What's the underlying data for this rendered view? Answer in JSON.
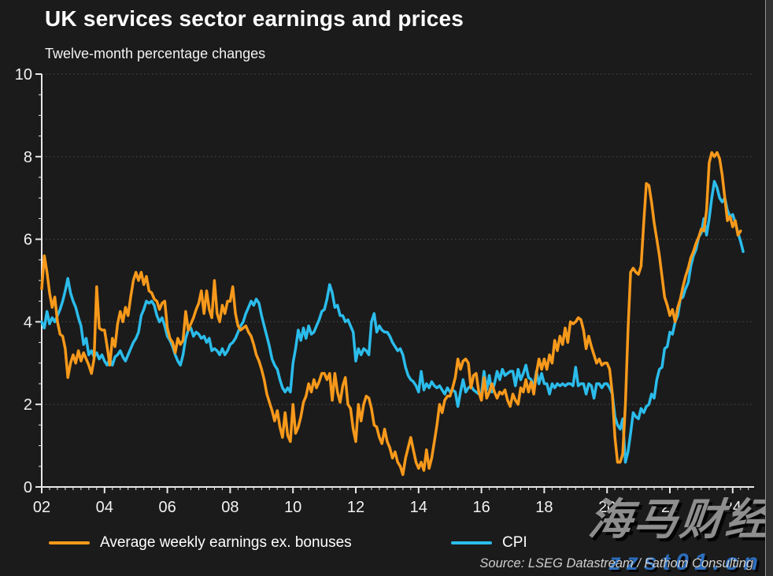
{
  "header": {
    "title": "UK services sector earnings and prices",
    "subtitle": "Twelve-month percentage changes"
  },
  "footer": {
    "source": "Source: LSEG Datastream / Fathom Consulting"
  },
  "watermark": {
    "text_cn": "海马财经",
    "text_url": "zzst01.cn"
  },
  "chart_data": {
    "type": "line",
    "title": "UK services sector earnings and prices",
    "subtitle": "Twelve-month percentage changes",
    "xlabel": "",
    "ylabel": "",
    "ylim": [
      0,
      10
    ],
    "y_ticks": [
      0,
      2,
      4,
      6,
      8,
      10
    ],
    "y_minor_step": 0.5,
    "x_start_year": 2002,
    "x_end_year": 2024.7,
    "x_tick_years": [
      2002,
      2004,
      2006,
      2008,
      2010,
      2012,
      2014,
      2016,
      2018,
      2020,
      2022,
      2024
    ],
    "x_tick_labels": [
      "02",
      "04",
      "06",
      "08",
      "10",
      "12",
      "14",
      "16",
      "18",
      "20",
      "22",
      "24"
    ],
    "x_minor_step_years": 0.25,
    "grid": "dotted horizontal gridlines at labeled y ticks",
    "legend_position": "bottom-left",
    "frequency": "monthly",
    "series": [
      {
        "name": "Average weekly earnings ex. bonuses",
        "color": "#F7991B",
        "start": "2002-01",
        "values": [
          4.8,
          5.6,
          5.2,
          4.7,
          4.35,
          4.6,
          4.0,
          3.7,
          3.65,
          3.35,
          2.65,
          3.0,
          3.2,
          3.0,
          3.3,
          3.05,
          3.25,
          3.1,
          2.95,
          2.75,
          3.1,
          4.85,
          3.85,
          3.8,
          3.8,
          3.4,
          2.95,
          3.6,
          3.4,
          3.95,
          4.25,
          4.0,
          4.35,
          4.15,
          4.6,
          5.0,
          5.2,
          5.0,
          5.2,
          4.9,
          5.1,
          4.75,
          4.7,
          4.55,
          4.5,
          4.3,
          4.45,
          4.5,
          3.85,
          3.6,
          3.5,
          3.25,
          3.6,
          3.45,
          3.55,
          4.25,
          3.8,
          3.95,
          4.1,
          4.3,
          4.45,
          4.75,
          4.2,
          4.75,
          4.3,
          4.1,
          5.0,
          4.2,
          4.0,
          4.4,
          4.2,
          4.5,
          4.5,
          4.85,
          4.2,
          3.9,
          3.8,
          3.85,
          3.9,
          3.75,
          3.65,
          3.45,
          3.2,
          3.05,
          2.85,
          2.6,
          2.25,
          2.05,
          1.85,
          1.6,
          1.85,
          1.45,
          1.2,
          1.8,
          1.25,
          1.1,
          2.0,
          1.3,
          1.45,
          1.7,
          2.05,
          2.2,
          2.5,
          2.3,
          2.6,
          2.4,
          2.55,
          2.75,
          2.75,
          2.6,
          2.75,
          2.1,
          2.75,
          2.3,
          2.05,
          2.45,
          2.65,
          2.0,
          1.9,
          1.4,
          1.1,
          2.0,
          1.6,
          2.0,
          2.2,
          2.15,
          1.9,
          1.5,
          1.45,
          1.2,
          1.05,
          1.4,
          1.1,
          0.95,
          0.7,
          0.85,
          0.6,
          0.5,
          0.3,
          0.7,
          0.95,
          1.2,
          0.9,
          0.6,
          0.45,
          0.6,
          0.4,
          0.9,
          0.45,
          0.7,
          1.1,
          1.5,
          2.0,
          1.8,
          2.1,
          2.2,
          2.2,
          2.4,
          2.65,
          3.1,
          2.85,
          3.05,
          3.1,
          3.0,
          2.4,
          2.7,
          2.75,
          2.3,
          2.1,
          2.65,
          2.15,
          2.3,
          2.5,
          2.3,
          2.15,
          2.3,
          2.25,
          2.35,
          2.1,
          1.95,
          2.25,
          2.1,
          2.0,
          2.4,
          2.3,
          2.6,
          2.3,
          2.55,
          2.25,
          2.75,
          3.1,
          2.85,
          3.1,
          2.85,
          3.2,
          3.0,
          3.55,
          3.3,
          3.65,
          3.45,
          3.85,
          3.5,
          4.0,
          3.95,
          4.0,
          4.1,
          4.05,
          3.8,
          3.35,
          3.65,
          3.4,
          3.2,
          3.0,
          3.1,
          2.95,
          3.0,
          3.0,
          2.85,
          2.25,
          1.2,
          0.6,
          0.6,
          0.8,
          2.0,
          3.8,
          5.2,
          5.3,
          5.2,
          5.15,
          5.35,
          6.4,
          7.35,
          7.3,
          6.9,
          6.4,
          6.0,
          5.6,
          5.1,
          4.6,
          4.4,
          4.15,
          4.3,
          4.0,
          4.35,
          4.55,
          4.85,
          5.1,
          5.3,
          5.55,
          5.7,
          5.9,
          6.05,
          6.25,
          6.2,
          6.7,
          7.85,
          8.1,
          8.0,
          8.1,
          7.95,
          7.55,
          7.0,
          6.45,
          6.55,
          6.3,
          6.45,
          6.1,
          6.2
        ]
      },
      {
        "name": "CPI",
        "color": "#2BBCEB",
        "start": "2002-01",
        "values": [
          4.0,
          3.85,
          4.25,
          3.95,
          4.1,
          4.0,
          4.15,
          4.3,
          4.5,
          4.75,
          5.05,
          4.7,
          4.5,
          4.35,
          4.1,
          3.9,
          3.45,
          3.6,
          3.2,
          3.3,
          3.15,
          3.25,
          3.1,
          3.2,
          3.05,
          2.95,
          3.1,
          2.95,
          3.15,
          3.2,
          3.3,
          3.15,
          3.05,
          3.2,
          3.35,
          3.5,
          3.6,
          3.75,
          4.15,
          4.3,
          4.5,
          4.45,
          4.5,
          4.4,
          4.15,
          4.0,
          4.1,
          3.9,
          3.65,
          3.55,
          3.4,
          3.2,
          3.05,
          2.95,
          3.2,
          3.6,
          3.8,
          3.85,
          3.65,
          3.75,
          3.7,
          3.6,
          3.65,
          3.5,
          3.6,
          3.3,
          3.35,
          3.3,
          3.2,
          3.35,
          3.2,
          3.3,
          3.45,
          3.5,
          3.6,
          3.75,
          3.9,
          4.0,
          4.2,
          4.35,
          4.5,
          4.4,
          4.55,
          4.45,
          4.15,
          3.9,
          3.65,
          3.4,
          3.1,
          2.95,
          2.85,
          2.6,
          2.4,
          2.3,
          2.4,
          2.3,
          3.0,
          3.35,
          3.8,
          3.55,
          3.85,
          3.6,
          3.9,
          3.7,
          3.75,
          3.9,
          4.05,
          4.25,
          4.3,
          4.55,
          4.9,
          4.7,
          4.35,
          4.4,
          4.15,
          4.15,
          4.0,
          4.05,
          3.9,
          3.75,
          3.05,
          3.35,
          3.2,
          3.35,
          3.3,
          3.2,
          4.0,
          4.2,
          3.75,
          3.9,
          3.8,
          3.75,
          3.75,
          3.65,
          3.5,
          3.4,
          3.3,
          3.35,
          3.2,
          2.9,
          2.7,
          2.6,
          2.55,
          2.45,
          2.3,
          2.8,
          2.35,
          2.5,
          2.4,
          2.55,
          2.45,
          2.4,
          2.45,
          2.35,
          2.25,
          2.4,
          2.3,
          2.35,
          2.3,
          1.95,
          2.3,
          2.6,
          2.3,
          2.4,
          2.45,
          2.35,
          2.3,
          2.25,
          2.25,
          2.8,
          2.35,
          2.7,
          2.3,
          2.5,
          2.8,
          2.6,
          2.85,
          2.7,
          2.75,
          2.8,
          2.8,
          2.45,
          2.85,
          2.6,
          2.75,
          2.95,
          2.65,
          2.6,
          2.4,
          2.8,
          2.5,
          2.75,
          2.5,
          2.5,
          2.25,
          2.5,
          2.4,
          2.5,
          2.45,
          2.5,
          2.45,
          2.5,
          2.5,
          2.45,
          2.9,
          2.45,
          2.5,
          2.5,
          2.25,
          2.5,
          2.45,
          2.15,
          2.5,
          2.5,
          2.4,
          2.5,
          2.5,
          2.4,
          2.25,
          1.7,
          1.5,
          1.4,
          1.65,
          0.6,
          0.85,
          1.3,
          1.8,
          1.7,
          1.65,
          1.9,
          1.8,
          1.95,
          2.0,
          2.25,
          2.15,
          2.6,
          2.85,
          2.9,
          3.35,
          3.4,
          3.75,
          3.7,
          4.0,
          4.15,
          4.55,
          4.6,
          4.8,
          4.95,
          5.35,
          5.6,
          5.75,
          6.05,
          6.15,
          6.5,
          6.1,
          6.5,
          7.0,
          7.4,
          7.25,
          7.0,
          6.9,
          7.0,
          6.7,
          6.55,
          6.6,
          6.4,
          6.15,
          5.95,
          5.7
        ]
      }
    ]
  }
}
